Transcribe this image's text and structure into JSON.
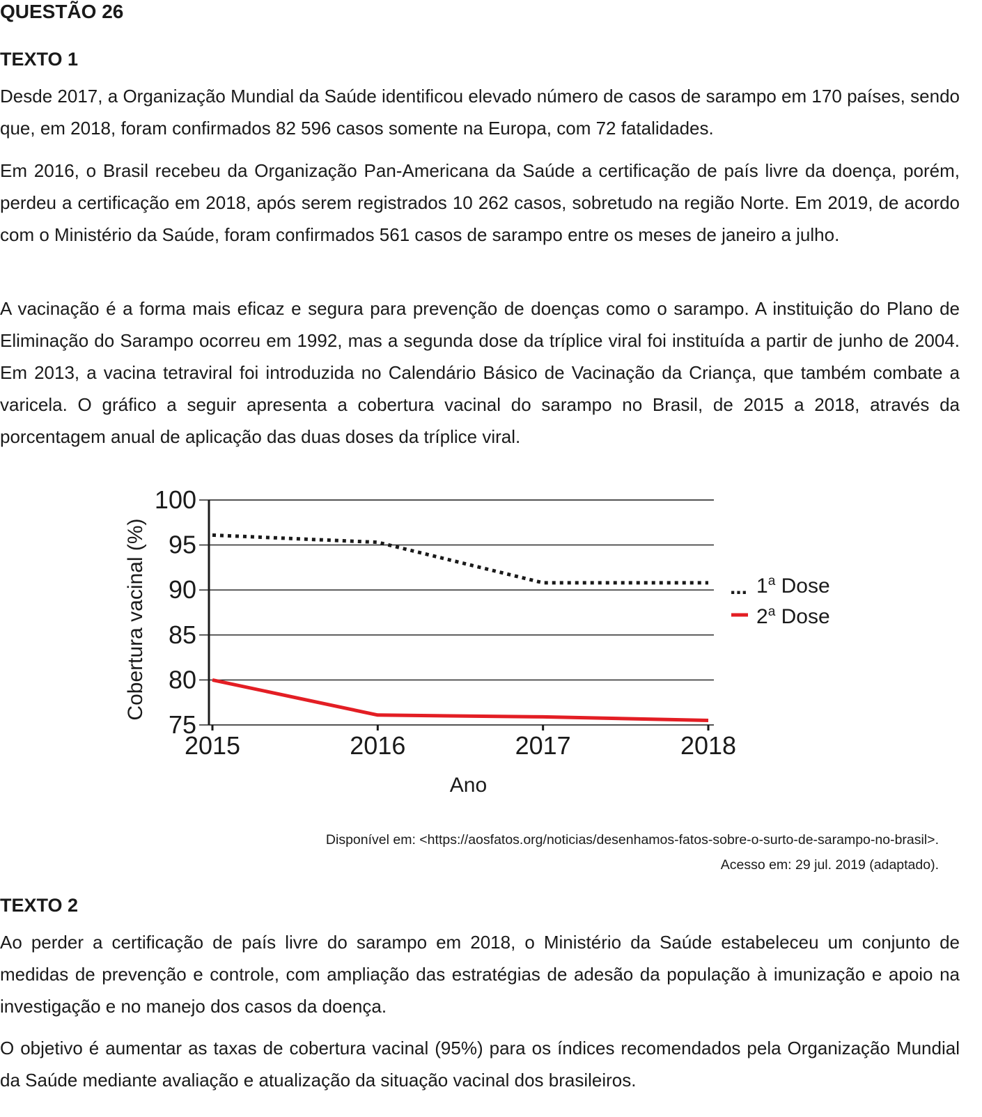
{
  "question_title": "QUESTÃO 26",
  "text1": {
    "heading": "TEXTO 1",
    "paragraphs": [
      "Desde 2017, a Organização Mundial da Saúde identificou elevado número de casos de sarampo em 170 países, sendo que, em 2018, foram confirmados 82 596 casos somente na Europa, com 72 fatalidades.",
      "Em 2016, o Brasil recebeu da Organização Pan-Americana da Saúde a certificação de país livre da doença, porém, perdeu a certificação em 2018, após serem registrados 10 262 casos, sobretudo na região Norte. Em 2019, de acordo com o Ministério da Saúde, foram confirmados 561 casos de sarampo entre os meses de janeiro a julho.",
      "A vacinação é a forma mais eficaz e segura para prevenção de doenças como o sarampo. A instituição do Plano de Eliminação do Sarampo ocorreu em 1992, mas a segunda dose da tríplice viral foi instituída a partir de junho de 2004. Em 2013, a vacina tetraviral foi introduzida no Calendário Básico de Vacinação da Criança, que também combate a varicela. O gráfico a seguir apresenta a cobertura vacinal do sarampo no Brasil, de 2015 a 2018, através da porcentagem anual de aplicação das duas doses da tríplice viral."
    ],
    "source_line1": "Disponível em: <https://aosfatos.org/noticias/desenhamos-fatos-sobre-o-surto-de-sarampo-no-brasil>.",
    "source_line2": "Acesso em: 29 jul. 2019 (adaptado)."
  },
  "text2": {
    "heading": "TEXTO 2",
    "paragraphs": [
      "Ao perder a certificação de país livre do sarampo em 2018, o Ministério da Saúde estabeleceu um conjunto de medidas de prevenção e controle, com ampliação das estratégias de adesão da população à imunização e apoio na investigação e no manejo dos casos da doença.",
      "O objetivo é aumentar as taxas de cobertura vacinal (95%) para os índices recomendados pela Organização Mundial da Saúde mediante avaliação e atualização da situação vacinal dos brasileiros."
    ]
  },
  "chart_data": {
    "type": "line",
    "title": "",
    "xlabel": "Ano",
    "ylabel": "Cobertura vacinal (%)",
    "x": [
      2015,
      2016,
      2017,
      2018
    ],
    "x_tick_labels": [
      "2015",
      "2016",
      "2017",
      "2018"
    ],
    "ylim": [
      75,
      100
    ],
    "y_ticks": [
      75,
      80,
      85,
      90,
      95,
      100
    ],
    "y_tick_labels": [
      "75",
      "80",
      "85",
      "90",
      "95",
      "100"
    ],
    "grid": "horizontal",
    "legend_position": "right",
    "series": [
      {
        "name_base": "1",
        "name_sup": "a",
        "name_rest": " Dose",
        "legend_marker": "...",
        "style": "dotted",
        "color": "#1a1a1a",
        "values": [
          96.1,
          95.3,
          90.8,
          90.8
        ]
      },
      {
        "name_base": "2",
        "name_sup": "a",
        "name_rest": " Dose",
        "legend_marker": "line",
        "style": "solid",
        "color": "#e31e24",
        "values": [
          80.0,
          76.1,
          75.9,
          75.5
        ]
      }
    ]
  }
}
